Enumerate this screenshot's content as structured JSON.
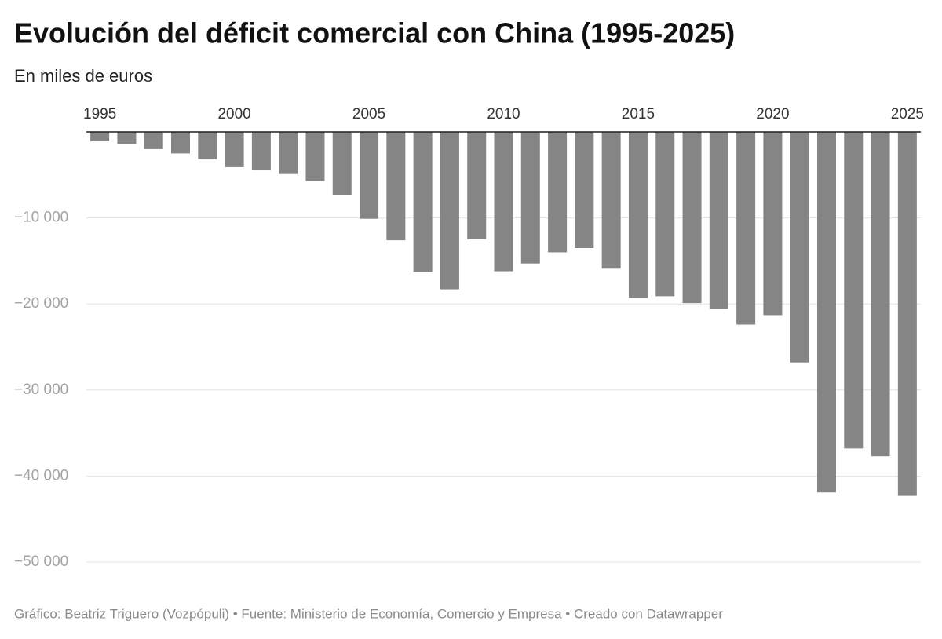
{
  "chart_data": {
    "type": "bar",
    "title": "Evolución del déficit comercial con China (1995-2025)",
    "subtitle": "En miles de euros",
    "footer": "Gráfico: Beatriz Triguero (Vozpópuli) • Fuente: Ministerio de Economía, Comercio y Empresa • Creado con Datawrapper",
    "x": [
      1995,
      1996,
      1997,
      1998,
      1999,
      2000,
      2001,
      2002,
      2003,
      2004,
      2005,
      2006,
      2007,
      2008,
      2009,
      2010,
      2011,
      2012,
      2013,
      2014,
      2015,
      2016,
      2017,
      2018,
      2019,
      2020,
      2021,
      2022,
      2023,
      2024,
      2025
    ],
    "values": [
      -1100,
      -1400,
      -2000,
      -2500,
      -3200,
      -4100,
      -4400,
      -4900,
      -5700,
      -7300,
      -10100,
      -12600,
      -16300,
      -18300,
      -12500,
      -16200,
      -15300,
      -14000,
      -13500,
      -15900,
      -19300,
      -19100,
      -19900,
      -20600,
      -22400,
      -21300,
      -26800,
      -41900,
      -36800,
      -37700,
      -42300
    ],
    "color": "#858585",
    "xlim": [
      1994.5,
      2025.5
    ],
    "xticks": [
      1995,
      2000,
      2005,
      2010,
      2015,
      2020,
      2025
    ],
    "ylim": [
      -50000,
      0
    ],
    "yticks": [
      {
        "value": -10000,
        "label": "−10 000"
      },
      {
        "value": -20000,
        "label": "−20 000"
      },
      {
        "value": -30000,
        "label": "−30 000"
      },
      {
        "value": -40000,
        "label": "−40 000"
      },
      {
        "value": -50000,
        "label": "−50 000"
      }
    ],
    "grid": true
  }
}
